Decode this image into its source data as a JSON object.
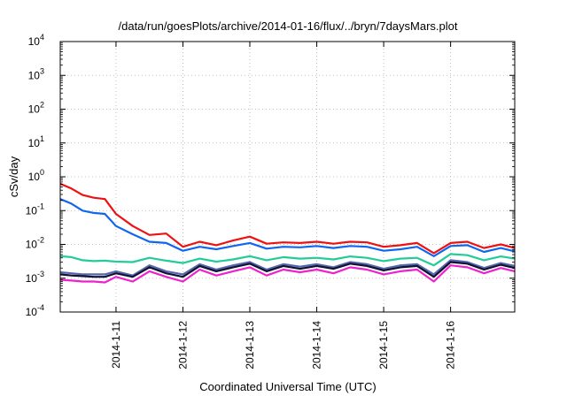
{
  "chart_data": {
    "type": "line",
    "title": "/data/run/goesPlots/archive/2014-01-16/flux/../bryn/7daysMars.plot",
    "xlabel": "Coordinated Universal Time (UTC)",
    "ylabel": "cSv/day",
    "yscale": "log",
    "ylim": [
      0.0001,
      10000
    ],
    "xlim": [
      "2014-01-10 04:00",
      "2014-01-16 23:00"
    ],
    "grid": true,
    "y_ticks": [
      {
        "base": "10",
        "exp": "4"
      },
      {
        "base": "10",
        "exp": "3"
      },
      {
        "base": "10",
        "exp": "2"
      },
      {
        "base": "10",
        "exp": "1"
      },
      {
        "base": "10",
        "exp": "0"
      },
      {
        "base": "10",
        "exp": "-1"
      },
      {
        "base": "10",
        "exp": "-2"
      },
      {
        "base": "10",
        "exp": "-3"
      },
      {
        "base": "10",
        "exp": "-4"
      }
    ],
    "x_ticks": [
      "2014-1-11",
      "2014-1-12",
      "2014-1-13",
      "2014-1-14",
      "2014-1-15",
      "2014-1-16"
    ],
    "x_tick_values": [
      "2014-01-11",
      "2014-01-12",
      "2014-01-13",
      "2014-01-14",
      "2014-01-15",
      "2014-01-16"
    ],
    "series": [
      {
        "color": "#ee1111",
        "points": [
          [
            "2014-01-10 04:00",
            0.62
          ],
          [
            "2014-01-10 08:00",
            0.45
          ],
          [
            "2014-01-10 12:00",
            0.29
          ],
          [
            "2014-01-10 16:00",
            0.24
          ],
          [
            "2014-01-10 20:00",
            0.22
          ],
          [
            "2014-01-11 00:00",
            0.08
          ],
          [
            "2014-01-11 06:00",
            0.035
          ],
          [
            "2014-01-11 12:00",
            0.019
          ],
          [
            "2014-01-11 18:00",
            0.021
          ],
          [
            "2014-01-12 00:00",
            0.0085
          ],
          [
            "2014-01-12 06:00",
            0.012
          ],
          [
            "2014-01-12 12:00",
            0.0095
          ],
          [
            "2014-01-12 18:00",
            0.013
          ],
          [
            "2014-01-13 00:00",
            0.017
          ],
          [
            "2014-01-13 06:00",
            0.0105
          ],
          [
            "2014-01-13 12:00",
            0.0115
          ],
          [
            "2014-01-13 18:00",
            0.011
          ],
          [
            "2014-01-14 00:00",
            0.012
          ],
          [
            "2014-01-14 06:00",
            0.0105
          ],
          [
            "2014-01-14 12:00",
            0.012
          ],
          [
            "2014-01-14 18:00",
            0.0115
          ],
          [
            "2014-01-15 00:00",
            0.0085
          ],
          [
            "2014-01-15 06:00",
            0.0095
          ],
          [
            "2014-01-15 12:00",
            0.011
          ],
          [
            "2014-01-15 18:00",
            0.0055
          ],
          [
            "2014-01-16 00:00",
            0.011
          ],
          [
            "2014-01-16 06:00",
            0.012
          ],
          [
            "2014-01-16 12:00",
            0.0078
          ],
          [
            "2014-01-16 18:00",
            0.01
          ],
          [
            "2014-01-16 23:00",
            0.0078
          ]
        ]
      },
      {
        "color": "#1166ee",
        "points": [
          [
            "2014-01-10 04:00",
            0.22
          ],
          [
            "2014-01-10 08:00",
            0.16
          ],
          [
            "2014-01-10 12:00",
            0.1
          ],
          [
            "2014-01-10 16:00",
            0.085
          ],
          [
            "2014-01-10 20:00",
            0.08
          ],
          [
            "2014-01-11 00:00",
            0.035
          ],
          [
            "2014-01-11 06:00",
            0.02
          ],
          [
            "2014-01-11 12:00",
            0.012
          ],
          [
            "2014-01-11 18:00",
            0.011
          ],
          [
            "2014-01-12 00:00",
            0.0065
          ],
          [
            "2014-01-12 06:00",
            0.0085
          ],
          [
            "2014-01-12 12:00",
            0.0072
          ],
          [
            "2014-01-12 18:00",
            0.009
          ],
          [
            "2014-01-13 00:00",
            0.011
          ],
          [
            "2014-01-13 06:00",
            0.0075
          ],
          [
            "2014-01-13 12:00",
            0.0085
          ],
          [
            "2014-01-13 18:00",
            0.0082
          ],
          [
            "2014-01-14 00:00",
            0.009
          ],
          [
            "2014-01-14 06:00",
            0.0078
          ],
          [
            "2014-01-14 12:00",
            0.009
          ],
          [
            "2014-01-14 18:00",
            0.0085
          ],
          [
            "2014-01-15 00:00",
            0.0065
          ],
          [
            "2014-01-15 06:00",
            0.0072
          ],
          [
            "2014-01-15 12:00",
            0.0085
          ],
          [
            "2014-01-15 18:00",
            0.0045
          ],
          [
            "2014-01-16 00:00",
            0.009
          ],
          [
            "2014-01-16 06:00",
            0.0095
          ],
          [
            "2014-01-16 12:00",
            0.006
          ],
          [
            "2014-01-16 18:00",
            0.0078
          ],
          [
            "2014-01-16 23:00",
            0.0062
          ]
        ]
      },
      {
        "color": "#22cc99",
        "points": [
          [
            "2014-01-10 04:00",
            0.0045
          ],
          [
            "2014-01-10 08:00",
            0.0042
          ],
          [
            "2014-01-10 12:00",
            0.0034
          ],
          [
            "2014-01-10 16:00",
            0.0032
          ],
          [
            "2014-01-10 20:00",
            0.0033
          ],
          [
            "2014-01-11 00:00",
            0.0031
          ],
          [
            "2014-01-11 06:00",
            0.003
          ],
          [
            "2014-01-11 12:00",
            0.004
          ],
          [
            "2014-01-11 18:00",
            0.0033
          ],
          [
            "2014-01-12 00:00",
            0.0028
          ],
          [
            "2014-01-12 06:00",
            0.0038
          ],
          [
            "2014-01-12 12:00",
            0.0031
          ],
          [
            "2014-01-12 18:00",
            0.0036
          ],
          [
            "2014-01-13 00:00",
            0.0045
          ],
          [
            "2014-01-13 06:00",
            0.0034
          ],
          [
            "2014-01-13 12:00",
            0.0042
          ],
          [
            "2014-01-13 18:00",
            0.0038
          ],
          [
            "2014-01-14 00:00",
            0.004
          ],
          [
            "2014-01-14 06:00",
            0.0036
          ],
          [
            "2014-01-14 12:00",
            0.0044
          ],
          [
            "2014-01-14 18:00",
            0.004
          ],
          [
            "2014-01-15 00:00",
            0.0032
          ],
          [
            "2014-01-15 06:00",
            0.0038
          ],
          [
            "2014-01-15 12:00",
            0.004
          ],
          [
            "2014-01-15 18:00",
            0.0024
          ],
          [
            "2014-01-16 00:00",
            0.0052
          ],
          [
            "2014-01-16 06:00",
            0.0048
          ],
          [
            "2014-01-16 12:00",
            0.0034
          ],
          [
            "2014-01-16 18:00",
            0.0044
          ],
          [
            "2014-01-16 23:00",
            0.0038
          ]
        ]
      },
      {
        "color": "#5566aa",
        "points": [
          [
            "2014-01-10 04:00",
            0.0015
          ],
          [
            "2014-01-10 08:00",
            0.0014
          ],
          [
            "2014-01-10 12:00",
            0.0013
          ],
          [
            "2014-01-10 16:00",
            0.0013
          ],
          [
            "2014-01-10 20:00",
            0.0013
          ],
          [
            "2014-01-11 00:00",
            0.0016
          ],
          [
            "2014-01-11 06:00",
            0.0012
          ],
          [
            "2014-01-11 12:00",
            0.0024
          ],
          [
            "2014-01-11 18:00",
            0.0016
          ],
          [
            "2014-01-12 00:00",
            0.0013
          ],
          [
            "2014-01-12 06:00",
            0.0026
          ],
          [
            "2014-01-12 12:00",
            0.0018
          ],
          [
            "2014-01-12 18:00",
            0.0024
          ],
          [
            "2014-01-13 00:00",
            0.003
          ],
          [
            "2014-01-13 06:00",
            0.0018
          ],
          [
            "2014-01-13 12:00",
            0.0026
          ],
          [
            "2014-01-13 18:00",
            0.0022
          ],
          [
            "2014-01-14 00:00",
            0.0026
          ],
          [
            "2014-01-14 06:00",
            0.0021
          ],
          [
            "2014-01-14 12:00",
            0.003
          ],
          [
            "2014-01-14 18:00",
            0.0026
          ],
          [
            "2014-01-15 00:00",
            0.0019
          ],
          [
            "2014-01-15 06:00",
            0.0024
          ],
          [
            "2014-01-15 12:00",
            0.0026
          ],
          [
            "2014-01-15 18:00",
            0.0013
          ],
          [
            "2014-01-16 00:00",
            0.0034
          ],
          [
            "2014-01-16 06:00",
            0.003
          ],
          [
            "2014-01-16 12:00",
            0.002
          ],
          [
            "2014-01-16 18:00",
            0.0028
          ],
          [
            "2014-01-16 23:00",
            0.0023
          ]
        ]
      },
      {
        "color": "#111133",
        "points": [
          [
            "2014-01-10 04:00",
            0.0013
          ],
          [
            "2014-01-10 08:00",
            0.0012
          ],
          [
            "2014-01-10 12:00",
            0.00115
          ],
          [
            "2014-01-10 16:00",
            0.0011
          ],
          [
            "2014-01-10 20:00",
            0.0011
          ],
          [
            "2014-01-11 00:00",
            0.0014
          ],
          [
            "2014-01-11 06:00",
            0.0011
          ],
          [
            "2014-01-11 12:00",
            0.0021
          ],
          [
            "2014-01-11 18:00",
            0.0014
          ],
          [
            "2014-01-12 00:00",
            0.0011
          ],
          [
            "2014-01-12 06:00",
            0.0023
          ],
          [
            "2014-01-12 12:00",
            0.0016
          ],
          [
            "2014-01-12 18:00",
            0.0021
          ],
          [
            "2014-01-13 00:00",
            0.0027
          ],
          [
            "2014-01-13 06:00",
            0.0016
          ],
          [
            "2014-01-13 12:00",
            0.0023
          ],
          [
            "2014-01-13 18:00",
            0.0019
          ],
          [
            "2014-01-14 00:00",
            0.0023
          ],
          [
            "2014-01-14 06:00",
            0.0019
          ],
          [
            "2014-01-14 12:00",
            0.0027
          ],
          [
            "2014-01-14 18:00",
            0.0023
          ],
          [
            "2014-01-15 00:00",
            0.0017
          ],
          [
            "2014-01-15 06:00",
            0.0021
          ],
          [
            "2014-01-15 12:00",
            0.0023
          ],
          [
            "2014-01-15 18:00",
            0.0011
          ],
          [
            "2014-01-16 00:00",
            0.003
          ],
          [
            "2014-01-16 06:00",
            0.0027
          ],
          [
            "2014-01-16 12:00",
            0.0018
          ],
          [
            "2014-01-16 18:00",
            0.0025
          ],
          [
            "2014-01-16 23:00",
            0.002
          ]
        ]
      },
      {
        "color": "#ee22cc",
        "points": [
          [
            "2014-01-10 04:00",
            0.0009
          ],
          [
            "2014-01-10 08:00",
            0.00085
          ],
          [
            "2014-01-10 12:00",
            0.0008
          ],
          [
            "2014-01-10 16:00",
            0.0008
          ],
          [
            "2014-01-10 20:00",
            0.00075
          ],
          [
            "2014-01-11 00:00",
            0.0011
          ],
          [
            "2014-01-11 06:00",
            0.0008
          ],
          [
            "2014-01-11 12:00",
            0.0016
          ],
          [
            "2014-01-11 18:00",
            0.0011
          ],
          [
            "2014-01-12 00:00",
            0.0008
          ],
          [
            "2014-01-12 06:00",
            0.0018
          ],
          [
            "2014-01-12 12:00",
            0.0012
          ],
          [
            "2014-01-12 18:00",
            0.0016
          ],
          [
            "2014-01-13 00:00",
            0.0021
          ],
          [
            "2014-01-13 06:00",
            0.0012
          ],
          [
            "2014-01-13 12:00",
            0.0018
          ],
          [
            "2014-01-13 18:00",
            0.0015
          ],
          [
            "2014-01-14 00:00",
            0.0018
          ],
          [
            "2014-01-14 06:00",
            0.0014
          ],
          [
            "2014-01-14 12:00",
            0.0021
          ],
          [
            "2014-01-14 18:00",
            0.0018
          ],
          [
            "2014-01-15 00:00",
            0.0013
          ],
          [
            "2014-01-15 06:00",
            0.0016
          ],
          [
            "2014-01-15 12:00",
            0.0018
          ],
          [
            "2014-01-15 18:00",
            0.0008
          ],
          [
            "2014-01-16 00:00",
            0.0024
          ],
          [
            "2014-01-16 06:00",
            0.0021
          ],
          [
            "2014-01-16 12:00",
            0.0014
          ],
          [
            "2014-01-16 18:00",
            0.002
          ],
          [
            "2014-01-16 23:00",
            0.0016
          ]
        ]
      }
    ]
  }
}
